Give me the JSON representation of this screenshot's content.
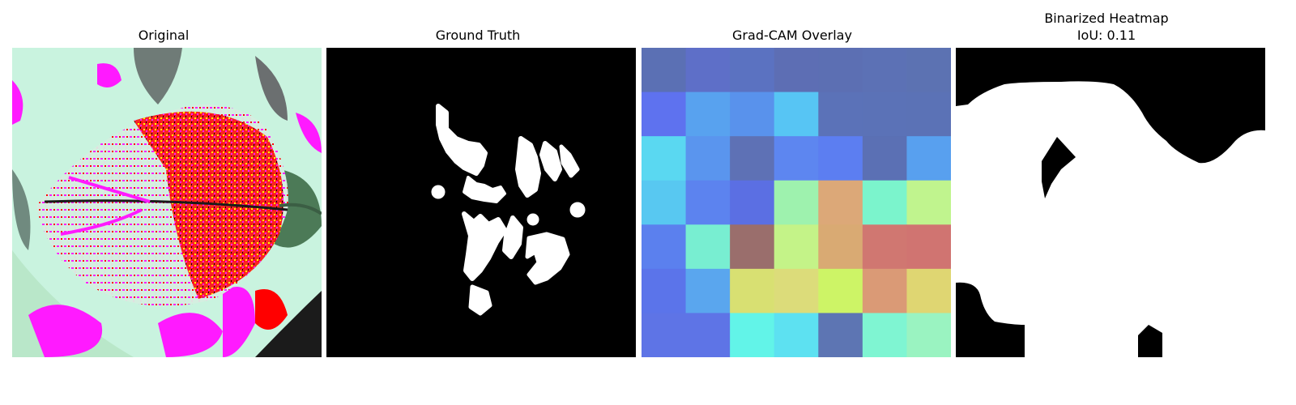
{
  "panels": [
    {
      "title": "Original"
    },
    {
      "title": "Ground Truth"
    },
    {
      "title": "Grad-CAM Overlay"
    },
    {
      "title": "Binarized Heatmap",
      "subtitle": "IoU: 0.11"
    }
  ],
  "colors": {
    "background": "#ffffff",
    "mask_fg": "#ffffff",
    "mask_bg": "#000000"
  },
  "gradcam_grid": [
    [
      "#5b70b4",
      "#5e6fc8",
      "#5b72c1",
      "#5d6eb4",
      "#5c6fb3",
      "#5c71b5",
      "#5c72b2"
    ],
    [
      "#5e72ef",
      "#58a2ef",
      "#5992ec",
      "#57c5f4",
      "#5b72b8",
      "#5b72b7",
      "#5b72b6"
    ],
    [
      "#5ad8f1",
      "#5a95ee",
      "#5e71b5",
      "#5d86f0",
      "#5c7ef1",
      "#5b70b4",
      "#58a0ef"
    ],
    [
      "#58c8f1",
      "#5c83ef",
      "#5b6fe3",
      "#9ef2ae",
      "#dca878",
      "#7bf4cc",
      "#c0f48e"
    ],
    [
      "#5b80ee",
      "#78eed1",
      "#9a6e6c",
      "#c4f388",
      "#d9aa73",
      "#d07771",
      "#d07471"
    ],
    [
      "#5b74ea",
      "#5aa6ee",
      "#d8e072",
      "#dcdc7a",
      "#cdf466",
      "#da9a76",
      "#dfd672"
    ],
    [
      "#5e74e6",
      "#5e74e6",
      "#62f4e8",
      "#5de1f1",
      "#5d75b3",
      "#7ff5d2",
      "#9af3c1"
    ]
  ]
}
